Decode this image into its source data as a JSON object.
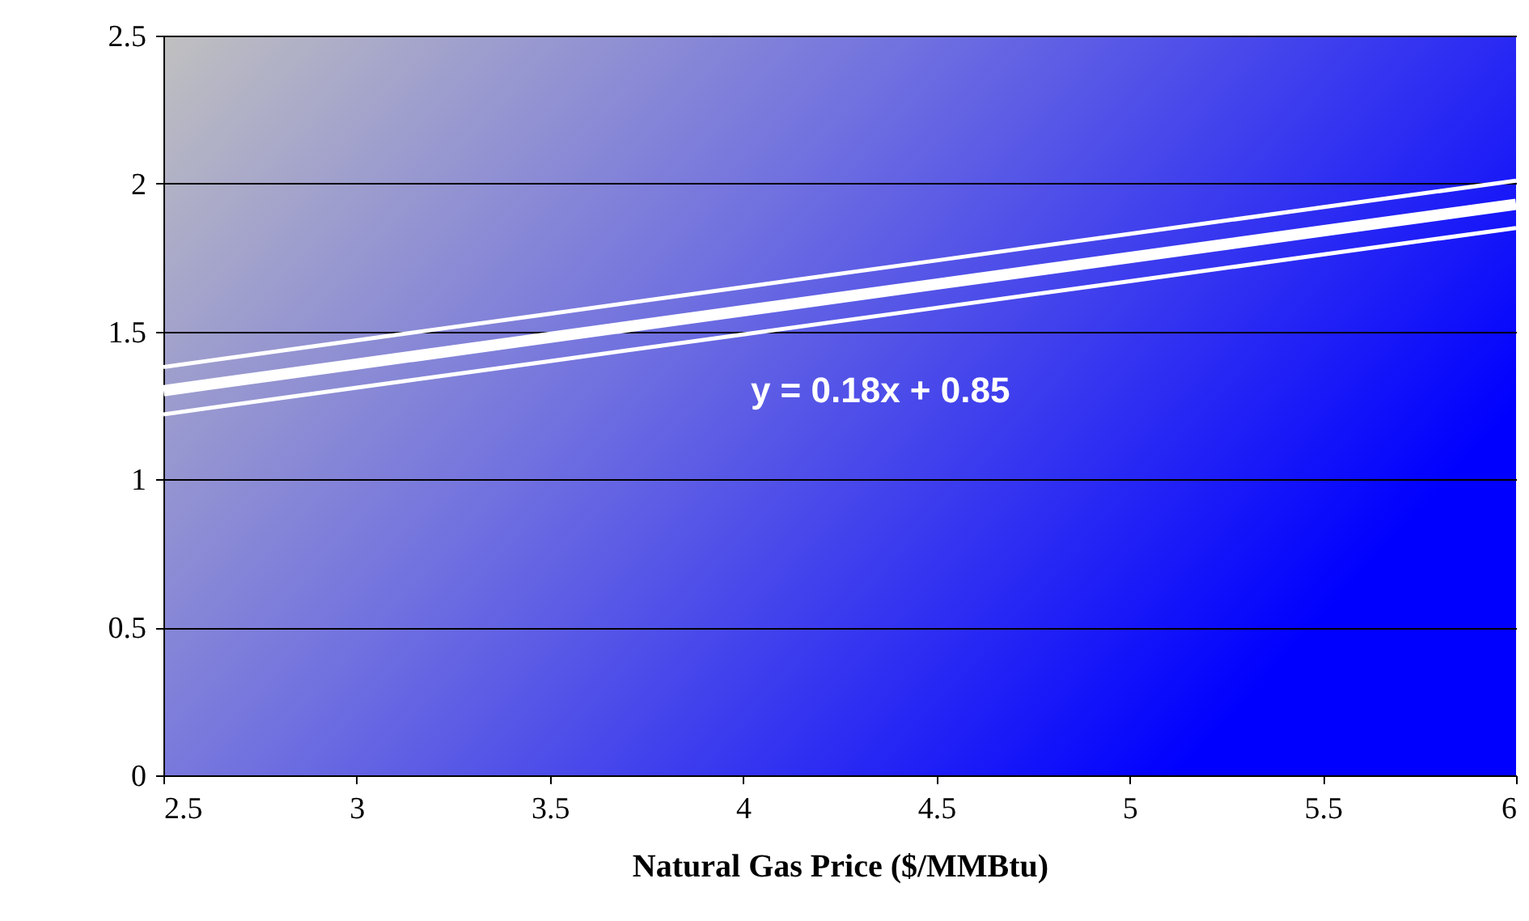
{
  "chart_data": {
    "type": "line",
    "xlabel": "Natural Gas Price ($/MMBtu)",
    "x": [
      2.5,
      3,
      3.5,
      4,
      4.5,
      5,
      5.5,
      6
    ],
    "series": [
      {
        "color": "#ffffff",
        "values": [
          1.3,
          1.39,
          1.48,
          1.57,
          1.66,
          1.75,
          1.84,
          1.93
        ]
      },
      {
        "color": "#ffffff",
        "values": [
          1.38,
          1.47,
          1.56,
          1.65,
          1.74,
          1.83,
          1.92,
          2.01
        ]
      },
      {
        "color": "#ffffff",
        "values": [
          1.22,
          1.31,
          1.4,
          1.49,
          1.58,
          1.67,
          1.76,
          1.85
        ]
      }
    ],
    "annotations": [
      "y = 0.18x + 0.85"
    ],
    "xlim": [
      2.5,
      6
    ],
    "xticks": [
      2.5,
      3,
      3.5,
      4,
      4.5,
      5,
      5.5,
      6
    ],
    "ylim": [
      0,
      2.5
    ],
    "yticks": [
      0,
      0.5,
      1,
      1.5,
      2,
      2.5
    ],
    "grid": "y",
    "marker": "none",
    "line_style": "solid"
  }
}
